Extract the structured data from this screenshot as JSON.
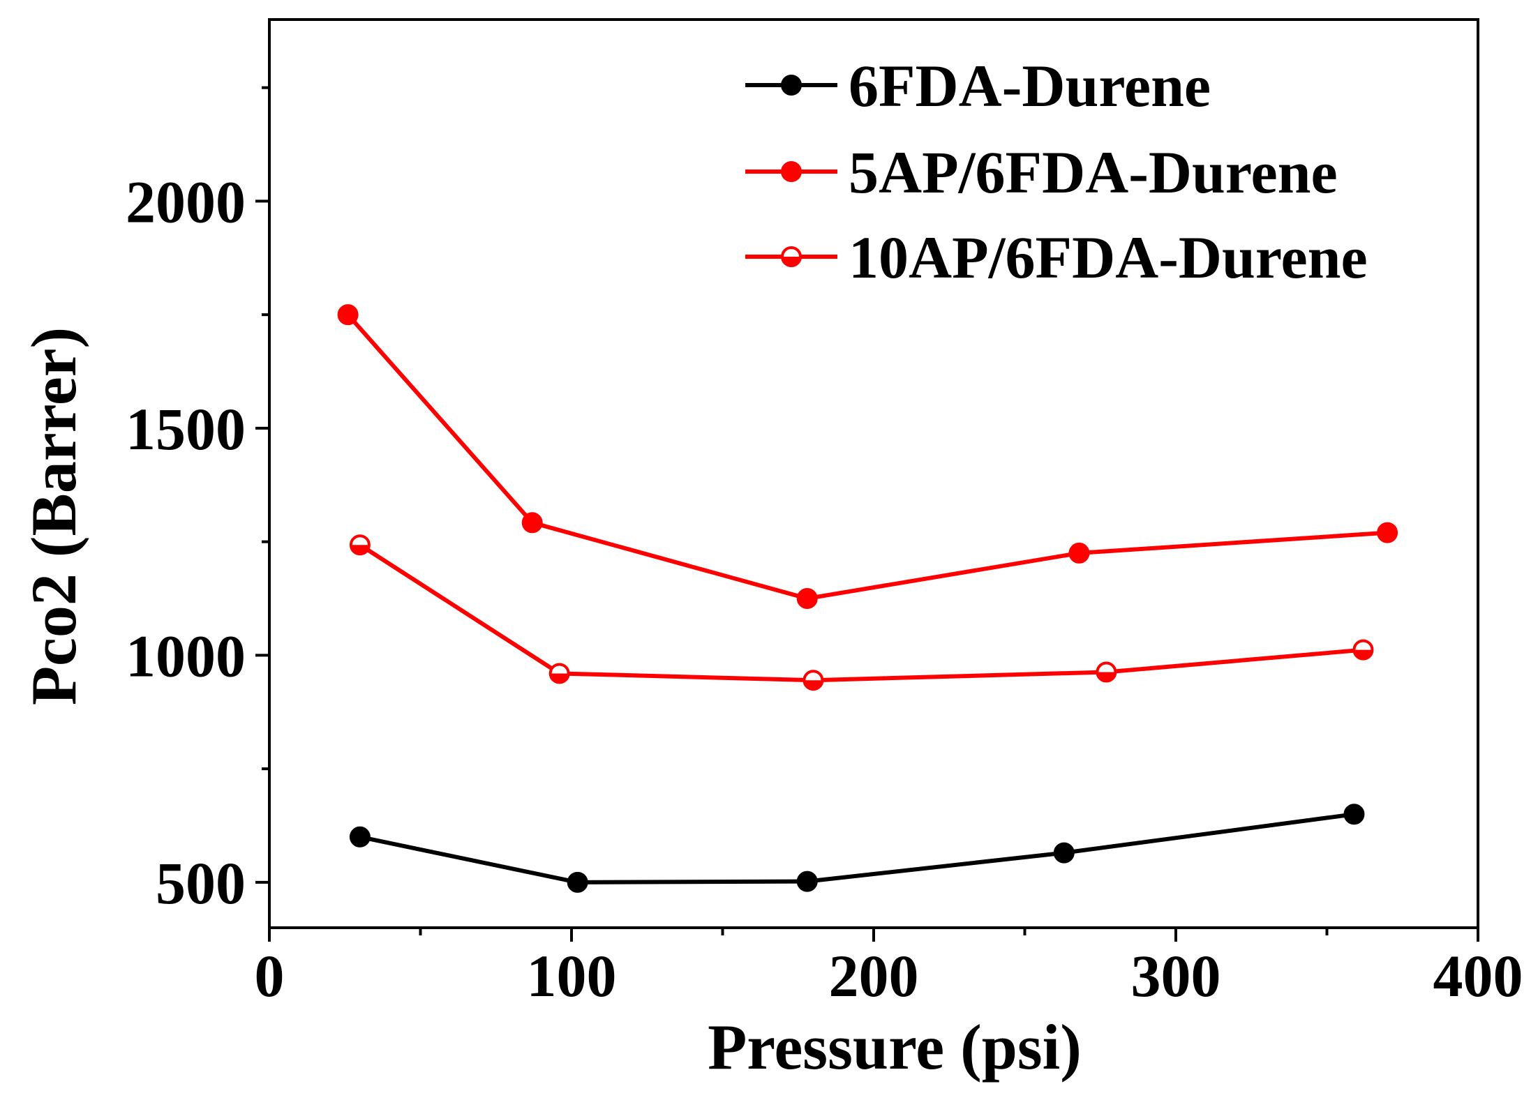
{
  "chart_data": {
    "type": "line",
    "title": "",
    "xlabel": "Pressure (psi)",
    "ylabel": "Pco2 (Barrer)",
    "xlim": [
      0,
      400
    ],
    "ylim": [
      400,
      2400
    ],
    "xticks": [
      0,
      100,
      200,
      300,
      400
    ],
    "xtick_labels": [
      "0",
      "100",
      "200",
      "300",
      "400"
    ],
    "yticks": [
      500,
      1000,
      1500,
      2000
    ],
    "ytick_labels": [
      "500",
      "1000",
      "1500",
      "2000"
    ],
    "minor_xticks": [
      50,
      150,
      250,
      350
    ],
    "minor_yticks": [
      750,
      1250,
      1750,
      2250
    ],
    "grid": false,
    "legend_position": "top-right",
    "series": [
      {
        "name": "6FDA-Durene",
        "color": "#000000",
        "marker": "filled-circle",
        "x": [
          30,
          102,
          178,
          263,
          359
        ],
        "y": [
          600,
          500,
          502,
          565,
          650
        ]
      },
      {
        "name": "5AP/6FDA-Durene",
        "color": "#ff0000",
        "marker": "filled-circle",
        "x": [
          26,
          87,
          178,
          268,
          370
        ],
        "y": [
          1750,
          1292,
          1125,
          1225,
          1270
        ]
      },
      {
        "name": "10AP/6FDA-Durene",
        "color": "#ff0000",
        "marker": "half-filled-circle",
        "x": [
          30,
          96,
          180,
          277,
          362
        ],
        "y": [
          1243,
          960,
          945,
          963,
          1012
        ]
      }
    ]
  }
}
